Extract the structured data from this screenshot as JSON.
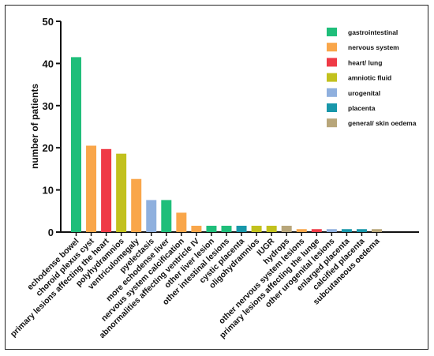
{
  "chart_data": {
    "type": "bar",
    "title": "",
    "xlabel": "",
    "ylabel": "number of patients",
    "ylim": [
      0,
      50
    ],
    "yticks": [
      0,
      10,
      20,
      30,
      40,
      50
    ],
    "legend_position": "top-right",
    "grid": false,
    "groups": [
      {
        "name": "gastrointestinal",
        "color": "#1fbe7a"
      },
      {
        "name": "nervous system",
        "color": "#f9a64a"
      },
      {
        "name": "heart/ lung",
        "color": "#ef3a46"
      },
      {
        "name": "amniotic fluid",
        "color": "#c2c11d"
      },
      {
        "name": "urogenital",
        "color": "#8fb0de"
      },
      {
        "name": "placenta",
        "color": "#1897aa"
      },
      {
        "name": "general/ skin oedema",
        "color": "#b8a67a"
      }
    ],
    "categories": [
      "echodense bowel",
      "choroid plexus cyst",
      "primary lesions affecting the heart",
      "polyhydramnios",
      "ventriculomegaly",
      "pyelectasis",
      "more echodense liver",
      "nervous system calcification",
      "abnormalities affecting ventricle IV",
      "other liver lesion",
      "other intestinal lesions",
      "cystic placenta",
      "oligohydramnios",
      "IUGR",
      "hydrops",
      "other nervous system lesions",
      "primary lesions affecting the lunge",
      "other urogenital lesions",
      "enlarged placenta",
      "calcified placenta",
      "subcutaneous oedema"
    ],
    "values": [
      41.5,
      20.5,
      19.7,
      18.6,
      12.6,
      7.6,
      7.6,
      4.6,
      1.5,
      1.5,
      1.5,
      1.5,
      1.5,
      1.5,
      1.5,
      0.7,
      0.7,
      0.7,
      0.7,
      0.7,
      0.7
    ],
    "group_index": [
      0,
      1,
      2,
      3,
      1,
      4,
      0,
      1,
      1,
      0,
      0,
      5,
      3,
      3,
      6,
      1,
      2,
      4,
      5,
      5,
      6
    ]
  }
}
